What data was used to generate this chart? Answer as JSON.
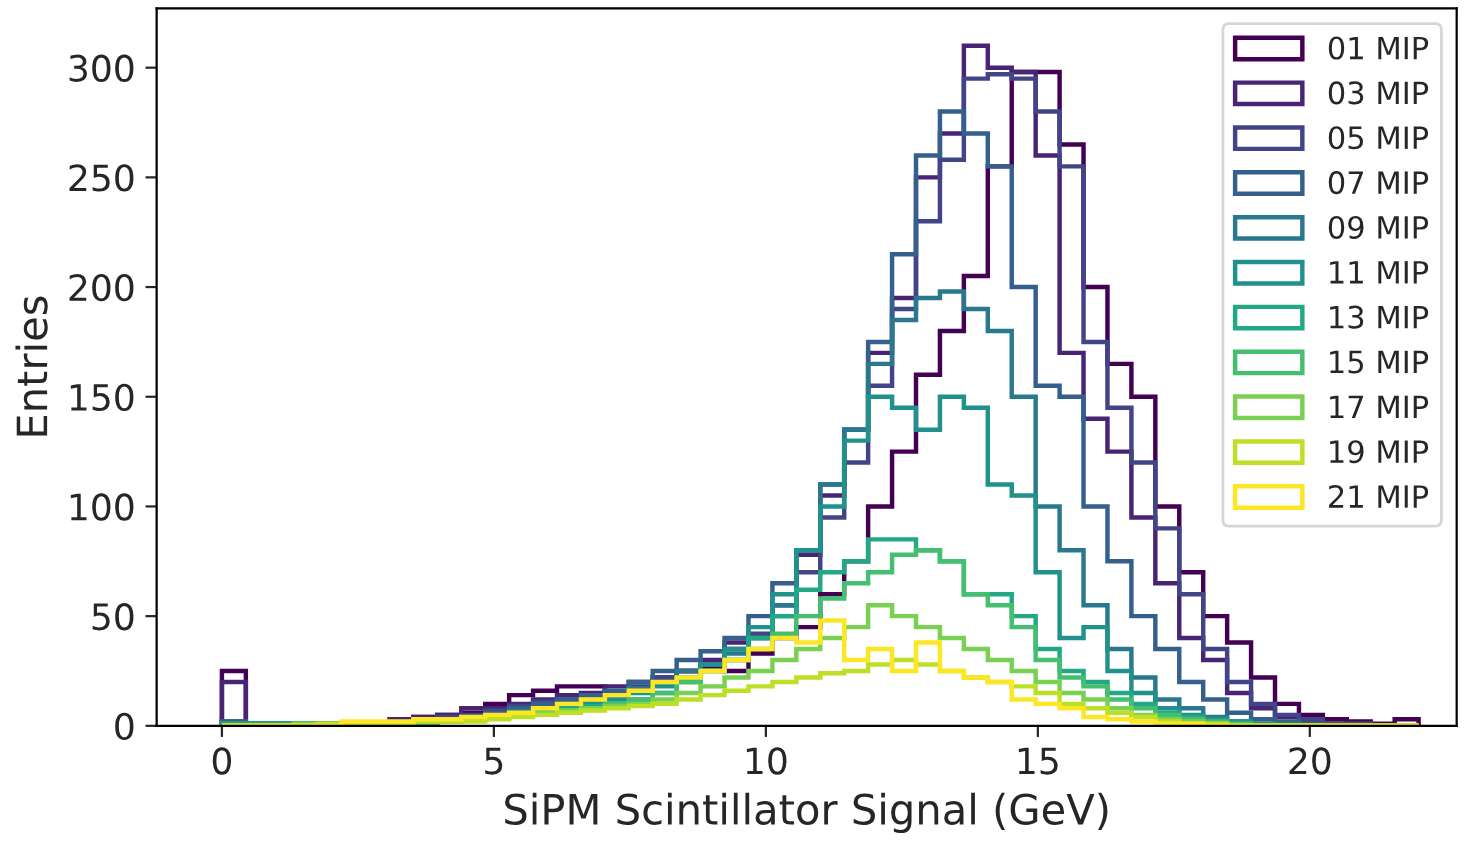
{
  "chart_data": {
    "type": "histogram",
    "xlabel": "SiPM Scintillator Signal (GeV)",
    "ylabel": "Entries",
    "bins": [
      0,
      0.44,
      0.88,
      1.32,
      1.76,
      2.2,
      2.64,
      3.08,
      3.52,
      3.96,
      4.4,
      4.84,
      5.28,
      5.72,
      6.16,
      6.6,
      7.04,
      7.48,
      7.92,
      8.36,
      8.8,
      9.24,
      9.68,
      10.12,
      10.56,
      11.0,
      11.44,
      11.88,
      12.32,
      12.76,
      13.2,
      13.64,
      14.08,
      14.52,
      14.96,
      15.4,
      15.84,
      16.28,
      16.72,
      17.16,
      17.6,
      18.04,
      18.48,
      18.92,
      19.36,
      19.8,
      20.24,
      20.68,
      21.12,
      21.56,
      22.0
    ],
    "series": [
      {
        "name": "01 MIP",
        "color": "#440154",
        "values": [
          25,
          1,
          1,
          1,
          1,
          1,
          1,
          2,
          4,
          5,
          6,
          10,
          14,
          16,
          18,
          18,
          14,
          20,
          22,
          25,
          27,
          25,
          33,
          40,
          45,
          60,
          75,
          100,
          125,
          160,
          180,
          205,
          255,
          298,
          298,
          265,
          200,
          165,
          150,
          100,
          70,
          50,
          38,
          22,
          10,
          5,
          3,
          2,
          1,
          3
        ]
      },
      {
        "name": "03 MIP",
        "color": "#482475",
        "values": [
          20,
          1,
          1,
          1,
          1,
          1,
          1,
          3,
          4,
          5,
          8,
          8,
          10,
          12,
          14,
          15,
          18,
          17,
          20,
          25,
          30,
          38,
          40,
          55,
          78,
          105,
          135,
          170,
          195,
          250,
          270,
          310,
          300,
          298,
          260,
          170,
          140,
          125,
          95,
          65,
          40,
          30,
          15,
          8,
          4,
          2,
          1,
          1,
          0,
          0
        ]
      },
      {
        "name": "05 MIP",
        "color": "#414487",
        "values": [
          2,
          1,
          1,
          1,
          1,
          1,
          1,
          2,
          3,
          4,
          5,
          7,
          9,
          11,
          12,
          14,
          15,
          18,
          22,
          25,
          28,
          35,
          42,
          50,
          70,
          95,
          120,
          155,
          190,
          230,
          258,
          295,
          297,
          295,
          280,
          255,
          175,
          145,
          120,
          90,
          60,
          35,
          20,
          10,
          5,
          3,
          1,
          1,
          0,
          0
        ]
      },
      {
        "name": "07 MIP",
        "color": "#355f8d",
        "values": [
          2,
          1,
          1,
          1,
          1,
          1,
          1,
          1,
          2,
          3,
          4,
          6,
          8,
          10,
          12,
          14,
          16,
          20,
          25,
          30,
          34,
          40,
          50,
          65,
          80,
          110,
          135,
          175,
          215,
          260,
          280,
          270,
          255,
          200,
          155,
          150,
          100,
          75,
          50,
          35,
          20,
          12,
          6,
          3,
          2,
          1,
          0,
          0,
          0,
          0
        ]
      },
      {
        "name": "09 MIP",
        "color": "#2a788e",
        "values": [
          1,
          1,
          1,
          1,
          1,
          1,
          1,
          1,
          2,
          2,
          3,
          5,
          7,
          8,
          10,
          12,
          14,
          17,
          20,
          25,
          28,
          33,
          40,
          55,
          80,
          110,
          135,
          165,
          185,
          195,
          198,
          190,
          180,
          150,
          100,
          80,
          55,
          35,
          22,
          12,
          8,
          4,
          2,
          1,
          1,
          0,
          0,
          0,
          0,
          0
        ]
      },
      {
        "name": "11 MIP",
        "color": "#21918c",
        "values": [
          1,
          1,
          1,
          1,
          1,
          1,
          1,
          1,
          1,
          2,
          3,
          4,
          6,
          7,
          8,
          10,
          12,
          15,
          18,
          22,
          28,
          35,
          45,
          60,
          80,
          100,
          130,
          150,
          145,
          135,
          150,
          145,
          110,
          105,
          70,
          40,
          45,
          25,
          15,
          8,
          5,
          3,
          2,
          1,
          0,
          0,
          0,
          0,
          0,
          0
        ]
      },
      {
        "name": "13 MIP",
        "color": "#22a884",
        "values": [
          1,
          1,
          1,
          1,
          1,
          1,
          1,
          1,
          1,
          2,
          3,
          4,
          5,
          6,
          8,
          9,
          10,
          12,
          15,
          20,
          25,
          30,
          40,
          50,
          62,
          70,
          75,
          85,
          85,
          80,
          75,
          60,
          60,
          50,
          35,
          25,
          20,
          15,
          10,
          6,
          4,
          2,
          1,
          0,
          0,
          0,
          0,
          0,
          0,
          0
        ]
      },
      {
        "name": "15 MIP",
        "color": "#44bf70",
        "values": [
          0,
          0,
          0,
          1,
          1,
          1,
          1,
          1,
          1,
          2,
          3,
          4,
          5,
          6,
          7,
          8,
          10,
          12,
          15,
          20,
          25,
          30,
          35,
          42,
          50,
          58,
          65,
          70,
          78,
          80,
          75,
          60,
          55,
          45,
          30,
          22,
          18,
          12,
          8,
          5,
          3,
          2,
          1,
          0,
          0,
          0,
          0,
          0,
          0,
          0
        ]
      },
      {
        "name": "17 MIP",
        "color": "#7ad151",
        "values": [
          0,
          0,
          0,
          1,
          1,
          1,
          1,
          1,
          2,
          2,
          3,
          4,
          5,
          6,
          7,
          8,
          9,
          10,
          12,
          15,
          18,
          22,
          25,
          30,
          35,
          40,
          45,
          55,
          50,
          45,
          40,
          35,
          30,
          25,
          20,
          15,
          12,
          8,
          5,
          3,
          2,
          1,
          0,
          0,
          0,
          0,
          0,
          0,
          0,
          0
        ]
      },
      {
        "name": "19 MIP",
        "color": "#bddf26",
        "values": [
          0,
          0,
          0,
          0,
          1,
          1,
          1,
          1,
          2,
          2,
          2,
          3,
          4,
          5,
          6,
          7,
          8,
          9,
          10,
          12,
          14,
          16,
          18,
          20,
          22,
          24,
          25,
          28,
          30,
          28,
          25,
          22,
          20,
          18,
          15,
          10,
          8,
          6,
          4,
          2,
          1,
          1,
          0,
          0,
          0,
          0,
          0,
          0,
          0,
          0
        ]
      },
      {
        "name": "21 MIP",
        "color": "#fde725",
        "values": [
          0,
          0,
          0,
          0,
          0,
          2,
          2,
          2,
          3,
          3,
          4,
          5,
          6,
          8,
          10,
          12,
          14,
          16,
          20,
          22,
          25,
          30,
          35,
          40,
          38,
          48,
          30,
          35,
          25,
          38,
          25,
          22,
          20,
          12,
          10,
          8,
          4,
          3,
          2,
          1,
          1,
          0,
          0,
          0,
          0,
          0,
          0,
          0,
          0,
          0
        ]
      }
    ],
    "xlim": [
      -1.2,
      22.7
    ],
    "ylim": [
      0,
      327
    ],
    "xticks": [
      0,
      5,
      10,
      15,
      20
    ],
    "yticks": [
      0,
      50,
      100,
      150,
      200,
      250,
      300
    ],
    "legend": "top right",
    "grid": false
  }
}
